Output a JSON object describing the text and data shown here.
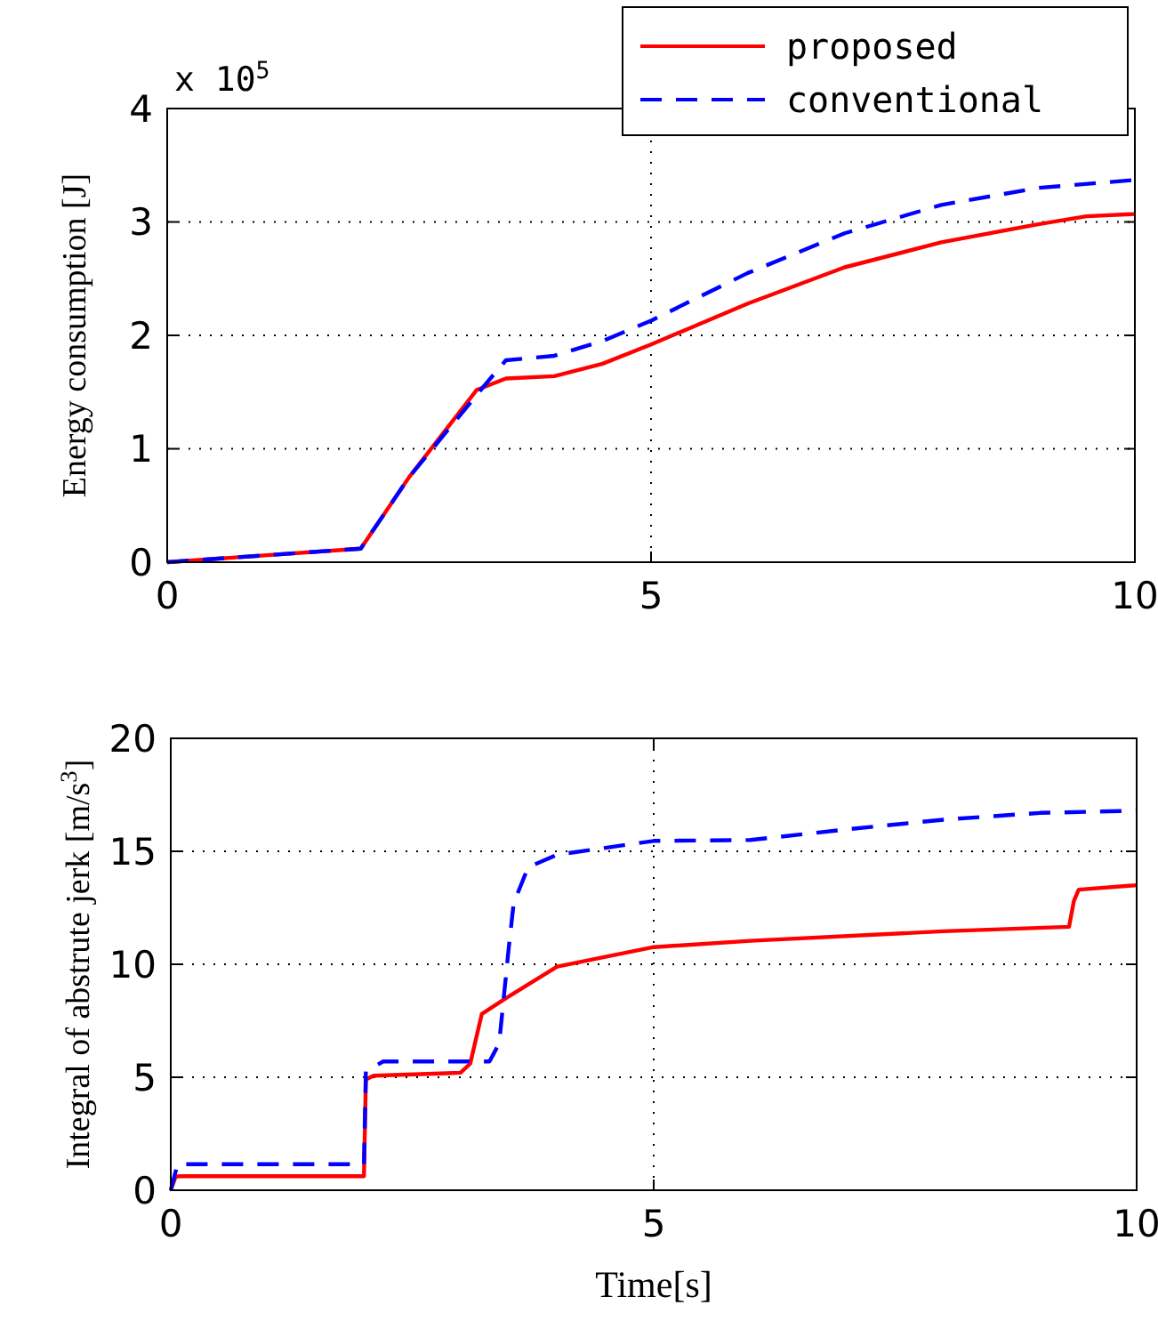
{
  "chart_data": [
    {
      "type": "line",
      "ylabel": "Energy consumption [J]",
      "annotations": [
        "x 10$^{5}$"
      ],
      "xlim": [
        0,
        10
      ],
      "xticks": [
        0,
        5,
        10
      ],
      "ylim": [
        0,
        4
      ],
      "yticks": [
        0,
        1,
        2,
        3,
        4
      ],
      "grid": true,
      "legend": "top right",
      "series": [
        {
          "name": "proposed",
          "color": "#ff0000",
          "line_style": "solid",
          "x": [
            0,
            2,
            2.5,
            3.2,
            3.5,
            4,
            4.5,
            5,
            6,
            7,
            8,
            9,
            9.5,
            10
          ],
          "values": [
            0,
            0.12,
            0.75,
            1.52,
            1.62,
            1.64,
            1.75,
            1.92,
            2.28,
            2.6,
            2.82,
            2.98,
            3.05,
            3.07
          ]
        },
        {
          "name": "conventional",
          "color": "#0000ff",
          "line_style": "dashed",
          "x": [
            0,
            2,
            2.5,
            3.3,
            3.5,
            4,
            4.5,
            5,
            6,
            7,
            8,
            9,
            10
          ],
          "values": [
            0,
            0.12,
            0.75,
            1.58,
            1.78,
            1.82,
            1.95,
            2.13,
            2.55,
            2.9,
            3.15,
            3.3,
            3.37
          ]
        }
      ]
    },
    {
      "type": "line",
      "ylabel": "Integral of abstrute jerk [m/s$^{3}$]",
      "xlabel": "Time[s]",
      "xlim": [
        0,
        10
      ],
      "xticks": [
        0,
        5,
        10
      ],
      "ylim": [
        0,
        20
      ],
      "yticks": [
        0,
        5,
        10,
        15,
        20
      ],
      "grid": true,
      "series": [
        {
          "color": "#ff0000",
          "line_style": "solid",
          "x": [
            0,
            0.05,
            0.1,
            2,
            2.02,
            2.1,
            3,
            3.1,
            3.22,
            3.47,
            4,
            5,
            6,
            8,
            9.3,
            9.35,
            9.4,
            10
          ],
          "values": [
            0,
            0.6,
            0.62,
            0.62,
            4.9,
            5.07,
            5.2,
            5.6,
            7.8,
            8.5,
            9.9,
            10.76,
            11.04,
            11.46,
            11.66,
            12.8,
            13.3,
            13.5
          ]
        },
        {
          "color": "#0000ff",
          "line_style": "dashed",
          "x": [
            0,
            0.07,
            2,
            2.02,
            2.2,
            3.3,
            3.4,
            3.5,
            3.55,
            3.7,
            4,
            5,
            6,
            7,
            8,
            9,
            10
          ],
          "values": [
            0,
            1.15,
            1.15,
            5.27,
            5.7,
            5.7,
            6.5,
            10.76,
            12.7,
            14.3,
            14.85,
            15.46,
            15.5,
            15.97,
            16.4,
            16.7,
            16.8
          ]
        }
      ]
    }
  ]
}
